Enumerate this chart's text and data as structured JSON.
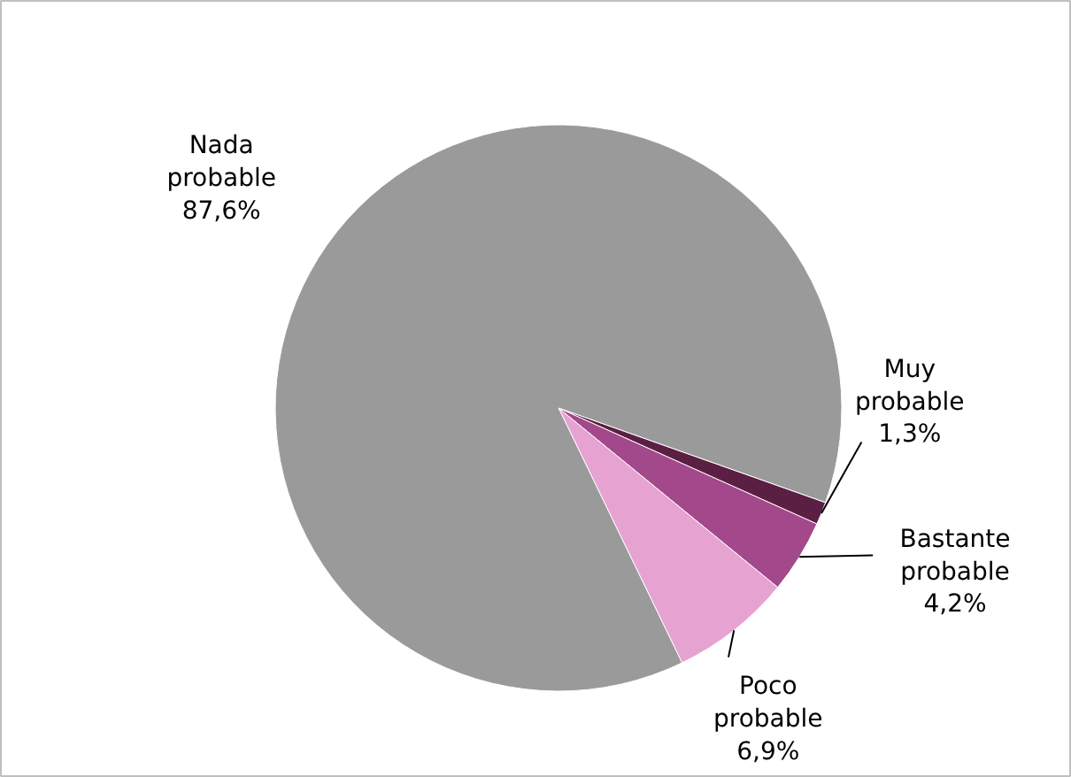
{
  "chart_data": {
    "type": "pie",
    "categories": [
      "Muy probable",
      "Bastante probable",
      "Poco probable",
      "Nada probable"
    ],
    "values": [
      1.3,
      4.2,
      6.9,
      87.6
    ],
    "colors": [
      "#5c1f44",
      "#a3488a",
      "#e6a3d2",
      "#9a9a9a"
    ],
    "value_labels": [
      "1,3%",
      "4,2%",
      "6,9%",
      "87,6%"
    ]
  }
}
